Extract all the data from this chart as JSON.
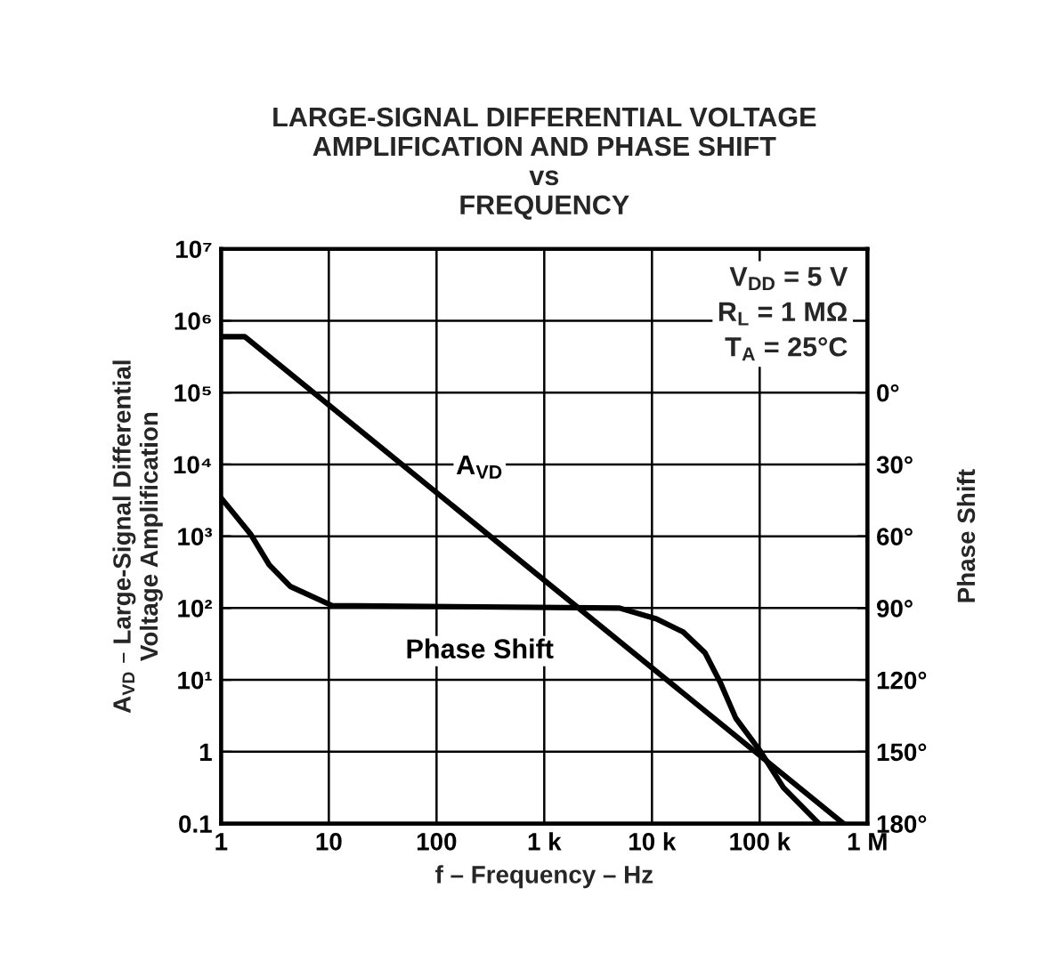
{
  "chart_data": {
    "type": "line",
    "title": "LARGE-SIGNAL DIFFERENTIAL VOLTAGE\nAMPLIFICATION AND PHASE SHIFT\nvs\nFREQUENCY",
    "xlabel": "f – Frequency – Hz",
    "ylabel": "A$_{VD}$ – Large-Signal Differential\nVoltage Amplification",
    "y2label": "Phase Shift",
    "annotations": [
      "V$_{DD}$ = 5 V\nR$_{L}$ = 1 MΩ\nT$_{A}$ = 25°C"
    ],
    "log": "xy",
    "grid": true,
    "legend": false,
    "xlim": [
      1,
      1000000
    ],
    "xticks": [
      1,
      10,
      100,
      {
        "value": 1000,
        "label": "1 k"
      },
      {
        "value": 10000,
        "label": "10 k"
      },
      {
        "value": 100000,
        "label": "100 k"
      },
      {
        "value": 1000000,
        "label": "1 M"
      }
    ],
    "ylim": [
      0.1,
      10000000
    ],
    "yticks": [
      0.1,
      1,
      {
        "value": 10,
        "label": "10¹"
      },
      {
        "value": 100,
        "label": "10²"
      },
      {
        "value": 1000,
        "label": "10³"
      },
      {
        "value": 10000,
        "label": "10⁴"
      },
      {
        "value": 100000,
        "label": "10⁵"
      },
      {
        "value": 1000000,
        "label": "10⁶"
      },
      {
        "value": 10000000,
        "label": "10⁷"
      }
    ],
    "y2lim": [
      180,
      -60
    ],
    "y2ticks": [
      {
        "value": 0,
        "label": "0°"
      },
      {
        "value": 30,
        "label": "30°"
      },
      {
        "value": 60,
        "label": "60°"
      },
      {
        "value": 90,
        "label": "90°"
      },
      {
        "value": 120,
        "label": "120°"
      },
      {
        "value": 150,
        "label": "150°"
      },
      {
        "value": 180,
        "label": "180°"
      }
    ],
    "series": [
      {
        "name": "A$_{VD}$",
        "color": "#000000",
        "x": [
          1,
          1.66,
          600000
        ],
        "values": [
          600000,
          600000,
          0.1
        ]
      },
      {
        "name": "Phase Shift",
        "color": "#000000",
        "axis": "y2",
        "x": [
          1,
          1.87,
          2.8,
          4.4,
          10.8,
          5000,
          11000,
          19500,
          31000,
          43000,
          60000,
          100000,
          166000,
          355000
        ],
        "values": [
          44,
          59,
          72,
          81,
          89,
          90,
          94.5,
          100,
          108.6,
          121,
          136,
          149.4,
          165,
          180
        ]
      }
    ]
  }
}
